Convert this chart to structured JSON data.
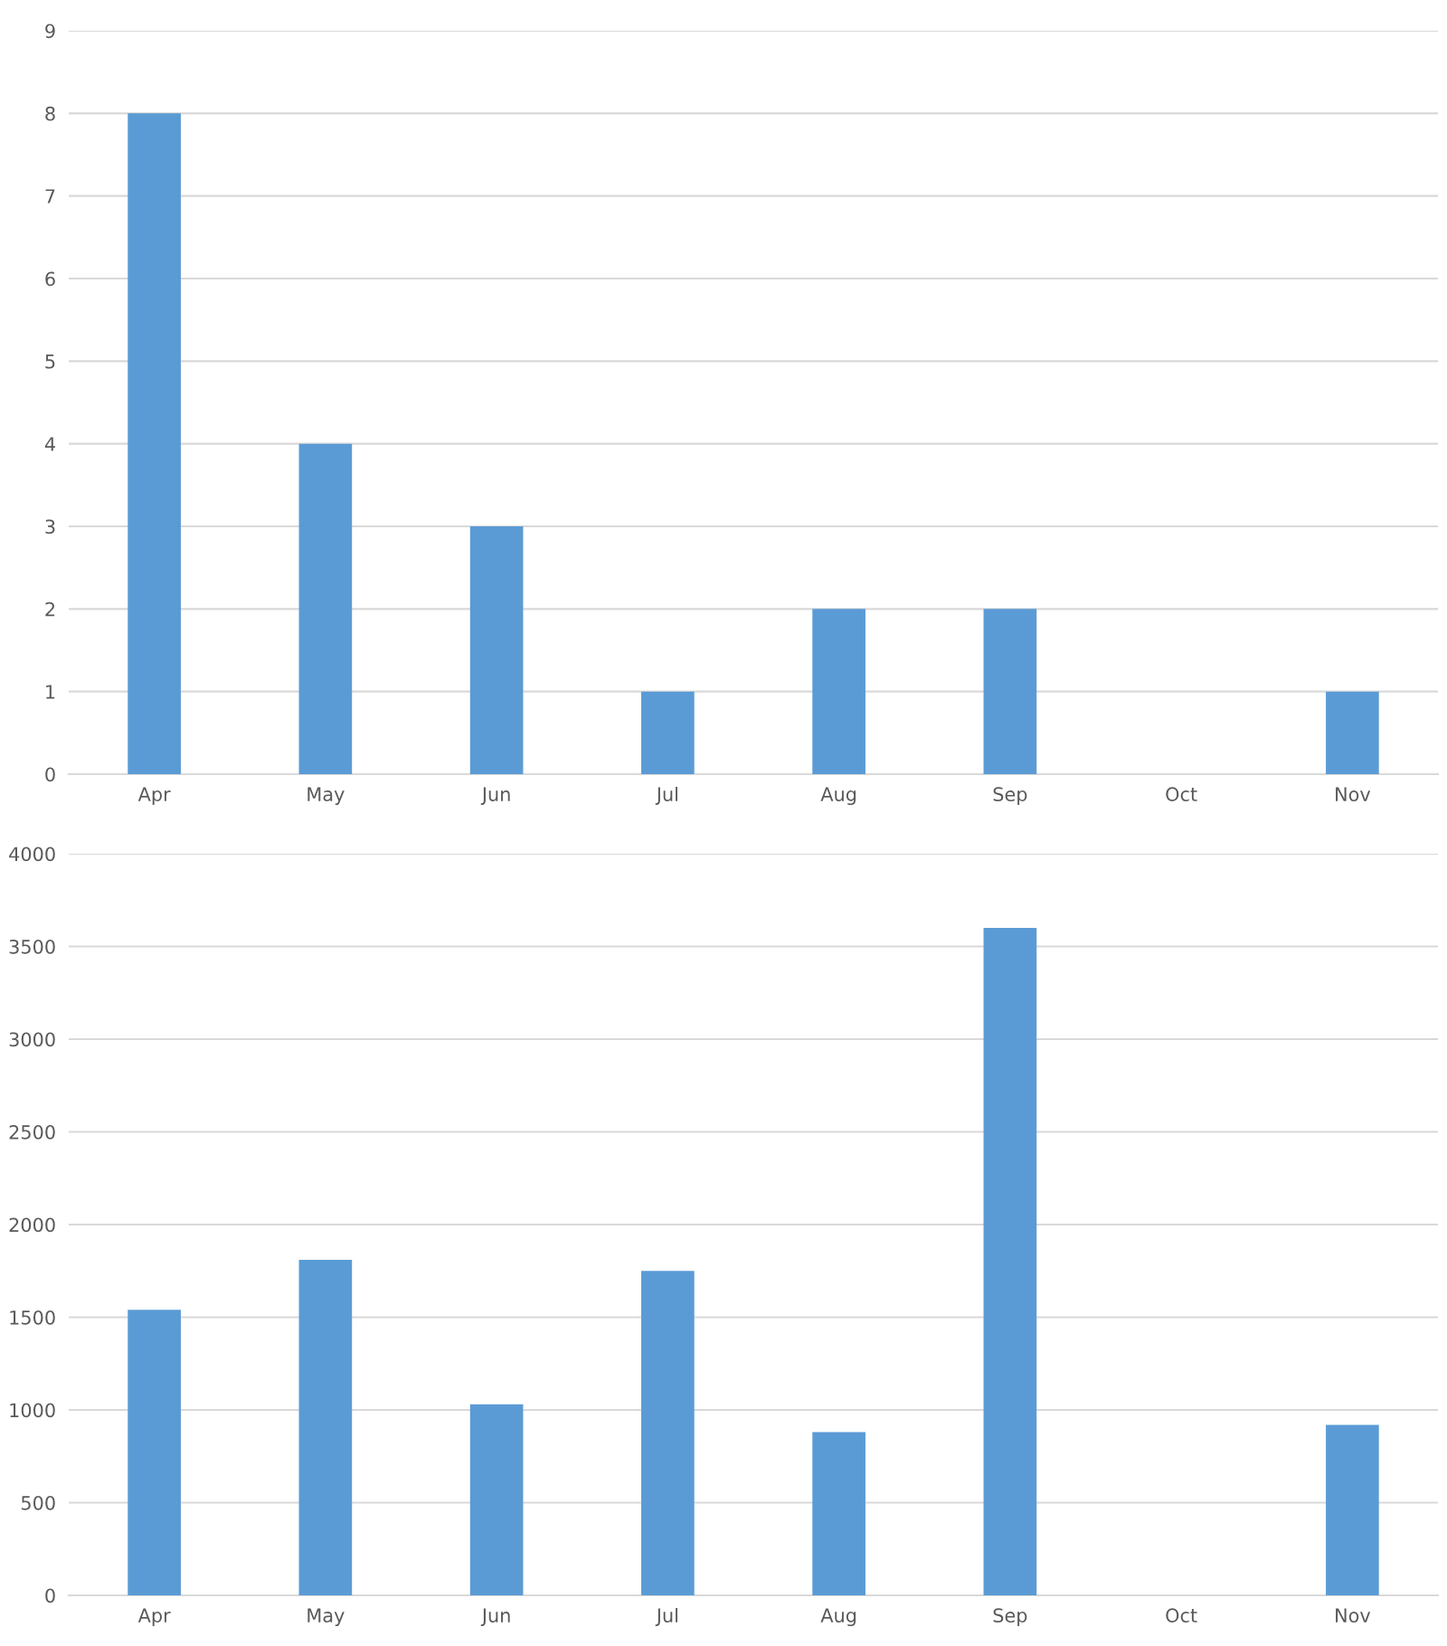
{
  "chart_data": [
    {
      "type": "bar",
      "categories": [
        "Apr",
        "May",
        "Jun",
        "Jul",
        "Aug",
        "Sep",
        "Oct",
        "Nov"
      ],
      "values": [
        8,
        4,
        3,
        1,
        2,
        2,
        0,
        1
      ],
      "color": "#5b9bd5",
      "ylim": [
        0,
        9
      ],
      "yticks": [
        0,
        1,
        2,
        3,
        4,
        5,
        6,
        7,
        8,
        9
      ],
      "grid": "y"
    },
    {
      "type": "bar",
      "categories": [
        "Apr",
        "May",
        "Jun",
        "Jul",
        "Aug",
        "Sep",
        "Oct",
        "Nov"
      ],
      "values": [
        1540,
        1810,
        1030,
        1750,
        880,
        3600,
        0,
        920
      ],
      "color": "#5b9bd5",
      "ylim": [
        0,
        4000
      ],
      "yticks": [
        0,
        500,
        1000,
        1500,
        2000,
        2500,
        3000,
        3500,
        4000
      ],
      "grid": "y"
    }
  ]
}
